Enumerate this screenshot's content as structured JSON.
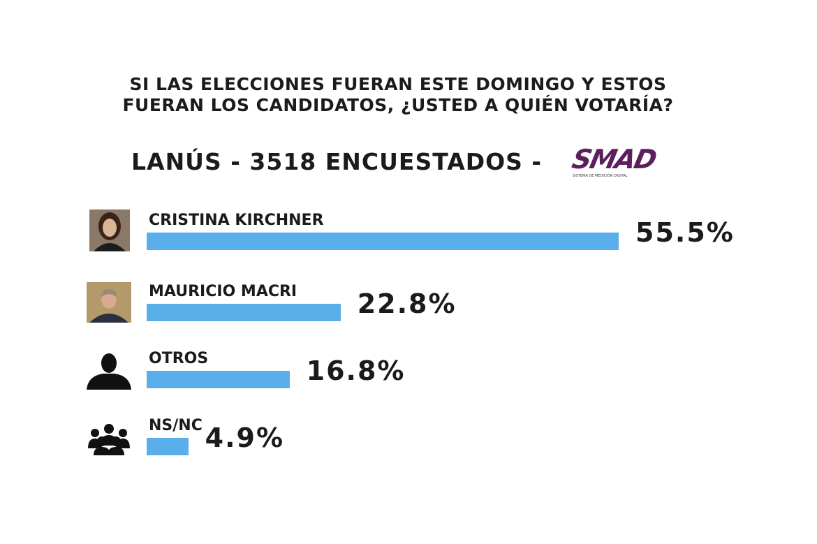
{
  "chart_data": {
    "type": "bar",
    "title": "SI LAS ELECCIONES FUERAN ESTE DOMINGO Y ESTOS FUERAN LOS CANDIDATOS, ¿USTED A QUIÉN VOTARÍA?",
    "subtitle": "LANÚS - 3518 ENCUESTADOS -",
    "logo": "SMAD",
    "logo_tagline": "SISTEMA DE MEDICIÓN DIGITAL",
    "categories": [
      "CRISTINA KIRCHNER",
      "MAURICIO MACRI",
      "OTROS",
      "NS/NC"
    ],
    "values": [
      55.5,
      22.8,
      16.8,
      4.9
    ],
    "value_labels": [
      "55.5%",
      "22.8%",
      "16.8%",
      "4.9%"
    ],
    "color": "#5aaeea"
  }
}
